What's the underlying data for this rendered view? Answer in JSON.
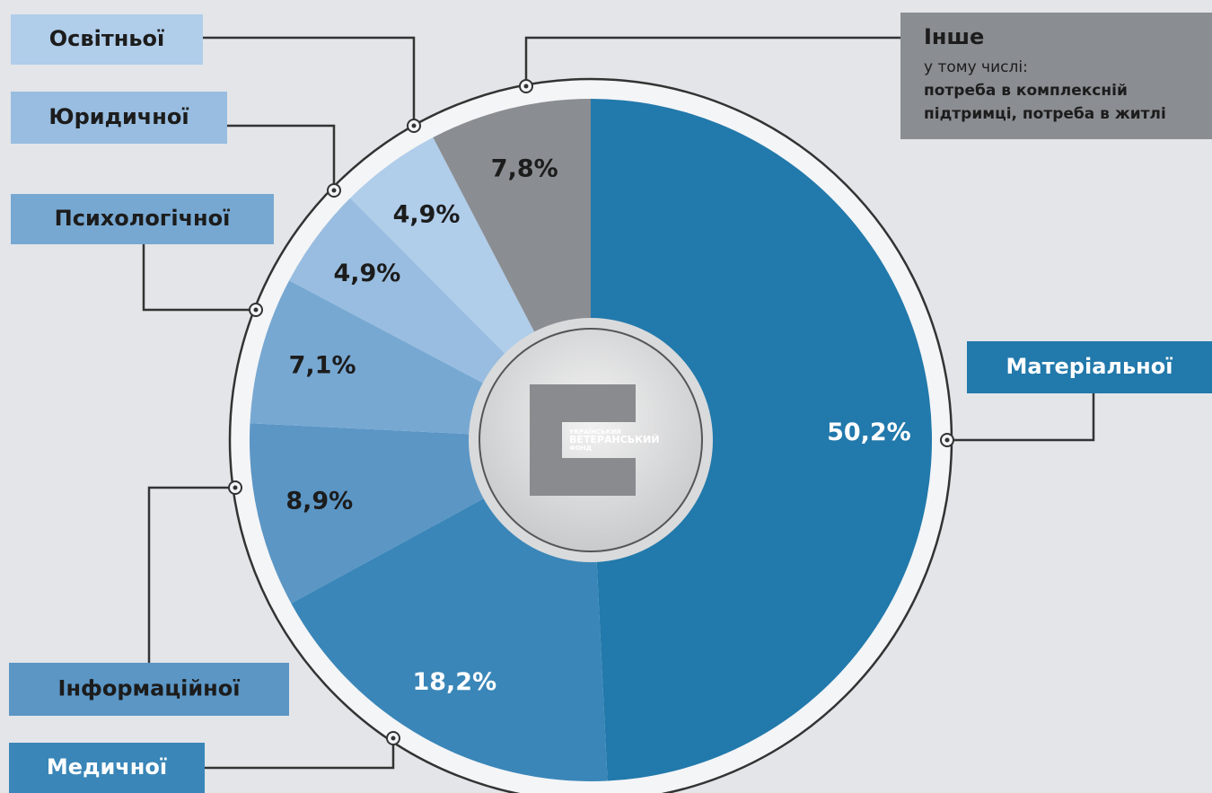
{
  "chart_data": {
    "type": "pie",
    "categories": [
      "Матеріальної",
      "Медичної",
      "Інформаційної",
      "Психологічної",
      "Юридичної",
      "Освітньої",
      "Інше"
    ],
    "values": [
      50.2,
      18.2,
      8.9,
      7.1,
      4.9,
      4.9,
      7.8
    ],
    "value_labels": [
      "50,2%",
      "18,2%",
      "8,9%",
      "7,1%",
      "4,9%",
      "4,9%",
      "7,8%"
    ],
    "colors": [
      "#2279ab",
      "#3a86b8",
      "#5b96c5",
      "#77a8d2",
      "#98bde0",
      "#b0cdea",
      "#8a8d91"
    ],
    "annotations": [
      "у тому числі:",
      "потреба в комплексній",
      "підтримці, потреба в житлі"
    ],
    "logo": [
      "УКРАЇНСЬКИЙ",
      "ВЕТЕРАНСЬКИЙ",
      "ФОНД"
    ]
  }
}
